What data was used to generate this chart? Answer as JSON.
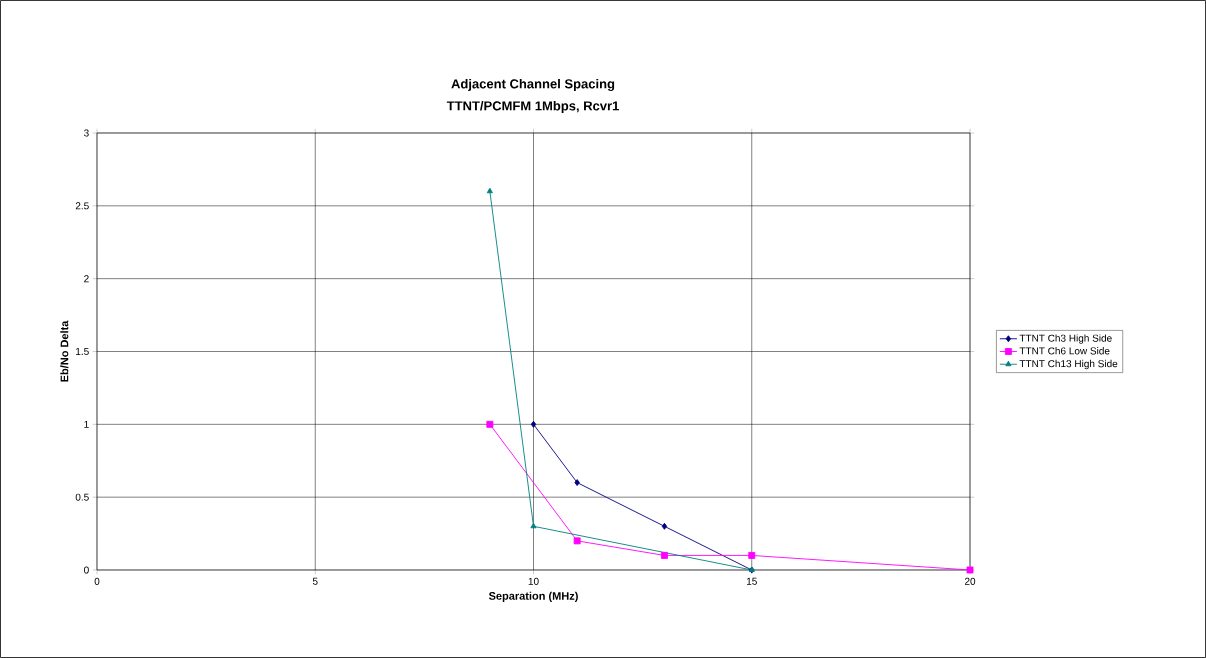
{
  "chart_data": {
    "type": "line",
    "title": "Adjacent Channel Spacing",
    "subtitle": "TTNT/PCMFM 1Mbps, Rcvr1",
    "xlabel": "Separation (MHz)",
    "ylabel": "Eb/No Delta",
    "series": [
      {
        "name": "TTNT Ch3 High Side",
        "color": "#000080",
        "marker": "diamond",
        "x": [
          10,
          11,
          13,
          15
        ],
        "values": [
          1,
          0.6,
          0.3,
          0
        ]
      },
      {
        "name": "TTNT Ch6 Low Side",
        "color": "#ff00ff",
        "marker": "square",
        "x": [
          9,
          11,
          13,
          15,
          20
        ],
        "values": [
          1,
          0.2,
          0.1,
          0.1,
          0
        ]
      },
      {
        "name": "TTNT Ch13 High Side",
        "color": "#008080",
        "marker": "triangle",
        "x": [
          9,
          10,
          15
        ],
        "values": [
          2.6,
          0.3,
          0
        ]
      }
    ],
    "xlim": [
      0,
      20
    ],
    "xticks": [
      0,
      5,
      10,
      15,
      20
    ],
    "ylim": [
      0,
      3
    ],
    "yticks": [
      0,
      0.5,
      1,
      1.5,
      2,
      2.5,
      3
    ],
    "grid": true,
    "legend": "right",
    "line_style": "solid"
  }
}
